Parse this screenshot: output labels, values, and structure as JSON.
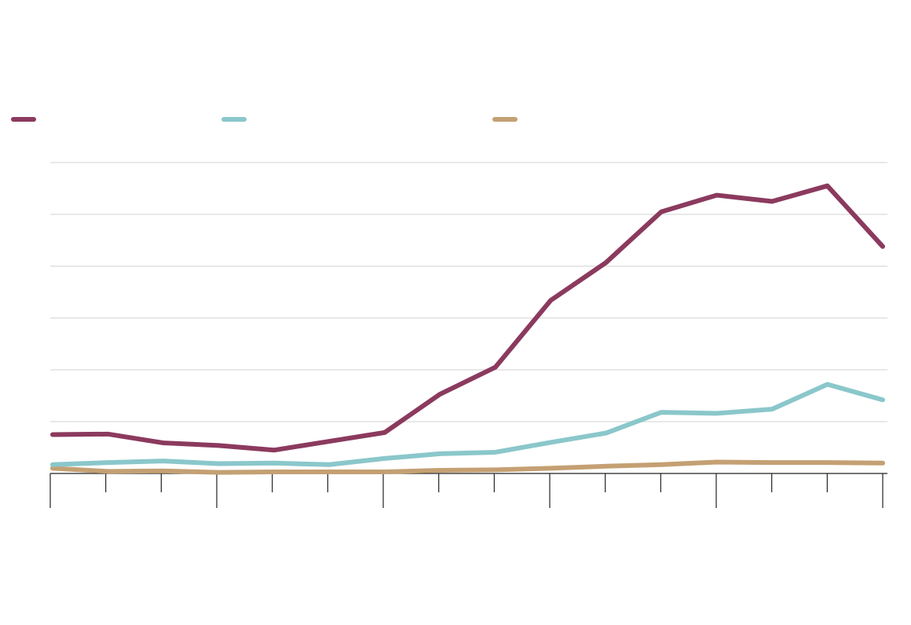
{
  "chart_data": {
    "type": "line",
    "title": "",
    "xlabel": "",
    "ylabel": "",
    "x": [
      0,
      1,
      2,
      3,
      4,
      5,
      6,
      7,
      8,
      9,
      10,
      11,
      12,
      13,
      14,
      15
    ],
    "ylim": [
      0,
      6
    ],
    "y_gridlines": [
      1,
      2,
      3,
      4,
      5,
      6
    ],
    "major_x_ticks": [
      0,
      3,
      6,
      9,
      12,
      15
    ],
    "legend_position": "top-left",
    "grid": true,
    "series": [
      {
        "color": "#8b3a5e",
        "values": [
          0.75,
          0.76,
          0.59,
          0.54,
          0.45,
          0.62,
          0.79,
          1.53,
          2.05,
          3.34,
          4.07,
          5.05,
          5.37,
          5.25,
          5.55,
          4.38
        ]
      },
      {
        "color": "#8ac7cb",
        "values": [
          0.17,
          0.21,
          0.24,
          0.19,
          0.2,
          0.17,
          0.29,
          0.38,
          0.41,
          0.6,
          0.78,
          1.18,
          1.16,
          1.24,
          1.72,
          1.42
        ]
      },
      {
        "color": "#c4a073",
        "values": [
          0.1,
          0.04,
          0.05,
          0.02,
          0.03,
          0.03,
          0.03,
          0.06,
          0.07,
          0.1,
          0.14,
          0.17,
          0.22,
          0.21,
          0.21,
          0.2
        ]
      }
    ]
  }
}
